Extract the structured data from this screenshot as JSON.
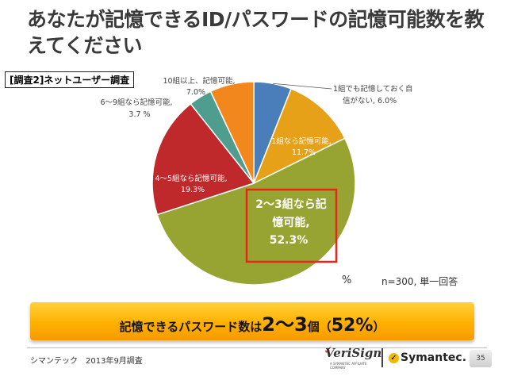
{
  "slide": {
    "title": "あなたが記憶できるID/パスワードの記憶可能数を教えてください",
    "survey_label": "[調査2]ネットユーザー調査",
    "unit": "%",
    "note": "n=300, 単一回答",
    "banner": {
      "prefix": "記憶できるパスワード数は",
      "value": "2～3",
      "mid": "個（",
      "percent": "52%",
      "suffix": "）"
    },
    "footer": {
      "source": "シマンテック　2013年9月調査",
      "verisign": "VeriSign",
      "verisign_sub": "A SYMANTEC AFFILIATE COMPANY",
      "symantec": "Symantec.",
      "page": "35"
    }
  },
  "chart_data": {
    "type": "pie",
    "title": "あなたが記憶できるID/パスワードの記憶可能数を教えてください",
    "unit": "%",
    "categories": [
      "1組でも記憶しておく自信がない",
      "1組なら記憶可能",
      "2～3組なら記憶可能",
      "4～5組なら記憶可能",
      "6～9組なら記憶可能",
      "10組以上、記憶可能"
    ],
    "values": [
      6.0,
      11.7,
      52.3,
      19.3,
      3.7,
      7.0
    ],
    "colors": [
      "#4a7ebb",
      "#e6a118",
      "#98a431",
      "#c0292b",
      "#4f9d8f",
      "#f2871e"
    ],
    "labels": [
      {
        "name": "1組でも記憶しておく自",
        "name2": "信がない,",
        "value": "6.0%"
      },
      {
        "name": "1組なら記憶可能,",
        "value": "11.7%"
      },
      {
        "name": "2～3組なら記",
        "name2": "憶可能,",
        "value": "52.3%"
      },
      {
        "name": "4～5組なら記憶可能,",
        "value": "19.3%"
      },
      {
        "name": "6～9組なら記憶可能,",
        "value": "3.7 %"
      },
      {
        "name": "10組以上、記憶可能,",
        "value": "7.0%"
      }
    ],
    "annotation": "n=300, 単一回答"
  }
}
